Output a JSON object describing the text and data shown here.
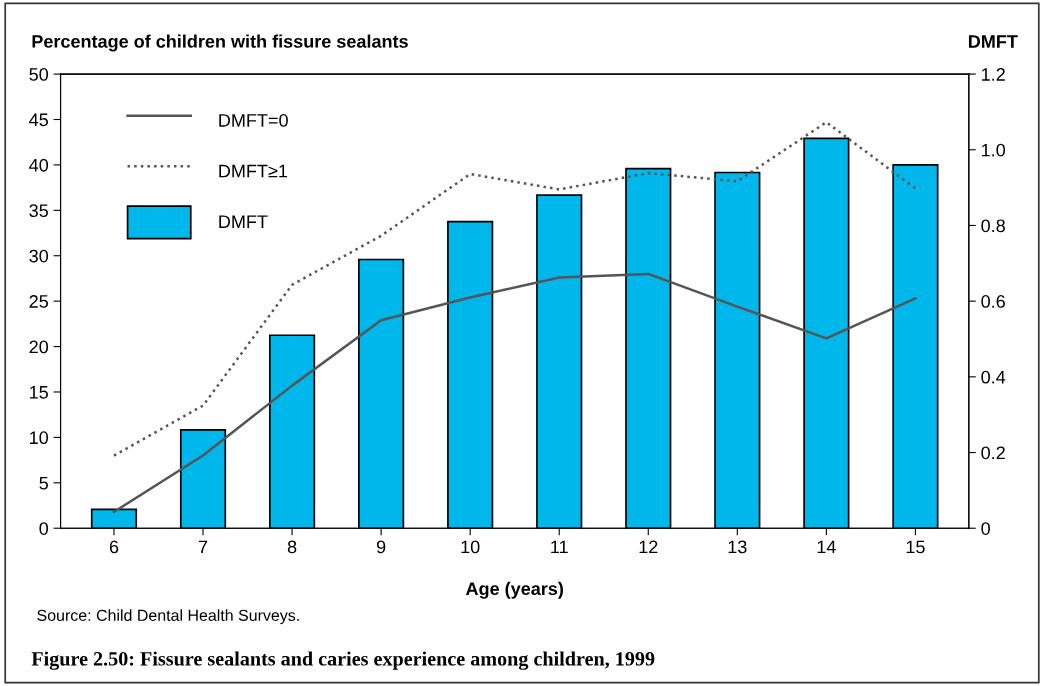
{
  "chart_data": {
    "type": "bar",
    "title": "Figure 2.50: Fissure sealants and caries experience among children, 1999",
    "xlabel": "Age (years)",
    "ylabel": "Percentage of children with fissure sealants",
    "y2label": "DMFT",
    "categories": [
      "6",
      "7",
      "8",
      "9",
      "10",
      "11",
      "12",
      "13",
      "14",
      "15"
    ],
    "series": [
      {
        "name": "DMFT=0",
        "type": "line",
        "color": "#555555",
        "line_style": "solid",
        "values": [
          1.8,
          8.0,
          15.7,
          22.9,
          25.4,
          27.6,
          28.0,
          24.4,
          20.9,
          25.3
        ]
      },
      {
        "name": "DMFT≥1",
        "type": "line",
        "color": "#555555",
        "line_style": "dotted",
        "values": [
          8.0,
          13.5,
          26.8,
          32.2,
          39.0,
          37.3,
          39.1,
          38.2,
          44.7,
          37.4
        ]
      },
      {
        "name": "DMFT",
        "axis": "y2",
        "color": "#00b7eb",
        "values": [
          0.05,
          0.26,
          0.51,
          0.71,
          0.81,
          0.88,
          0.95,
          0.94,
          1.03,
          0.96
        ]
      }
    ],
    "ylim": [
      0,
      50
    ],
    "yticks": [
      0,
      5,
      10,
      15,
      20,
      25,
      30,
      35,
      40,
      45,
      50
    ],
    "y2lim": [
      0,
      1.2
    ],
    "y2ticks": [
      0,
      0.2,
      0.4,
      0.6,
      {
        "value": 0.8,
        "label": "0.8"
      },
      {
        "value": 1.0,
        "label": "1.0"
      },
      1.2
    ],
    "legend": "top left",
    "grid": false,
    "annotations": [
      "Source: Child Dental Health Surveys."
    ]
  }
}
